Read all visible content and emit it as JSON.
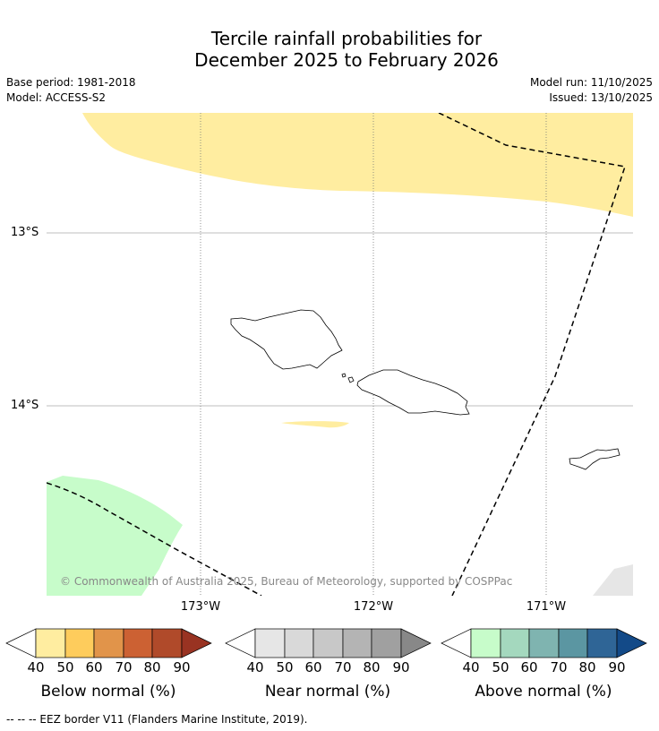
{
  "title": {
    "line1": "Tercile rainfall probabilities for",
    "line2": "December 2025 to February 2026"
  },
  "meta": {
    "base_period": "Base period: 1981-2018",
    "model": "Model: ACCESS-S2",
    "model_run": "Model run: 11/10/2025",
    "issued": "Issued: 13/10/2025"
  },
  "map": {
    "lat_labels": [
      "13°S",
      "14°S"
    ],
    "lon_labels": [
      "173°W",
      "172°W",
      "171°W"
    ],
    "credit": "© Commonwealth of Australia 2025, Bureau of Meteorology, supported by COSPPac",
    "colors": {
      "below_light": "#ffeda0",
      "above_light": "#c7fcca",
      "near_light": "#e6e6e6",
      "coast": "#000000",
      "grid": "#999999"
    }
  },
  "colorbars": {
    "ticks": [
      "40",
      "50",
      "60",
      "70",
      "80",
      "90"
    ],
    "below": {
      "label": "Below normal (%)",
      "colors": [
        "#ffeda0",
        "#fecc5c",
        "#e1944a",
        "#cc6133",
        "#b04a2a",
        "#993322"
      ]
    },
    "near": {
      "label": "Near normal (%)",
      "colors": [
        "#e6e6e6",
        "#d9d9d9",
        "#c8c8c8",
        "#b4b4b4",
        "#a0a0a0",
        "#888888"
      ]
    },
    "above": {
      "label": "Above normal (%)",
      "colors": [
        "#c7fcca",
        "#a4d8be",
        "#7fb4b0",
        "#5b96a2",
        "#2f6596",
        "#134a88"
      ]
    }
  },
  "footer": "--  --  -- EEZ border V11 (Flanders Marine Institute, 2019)."
}
